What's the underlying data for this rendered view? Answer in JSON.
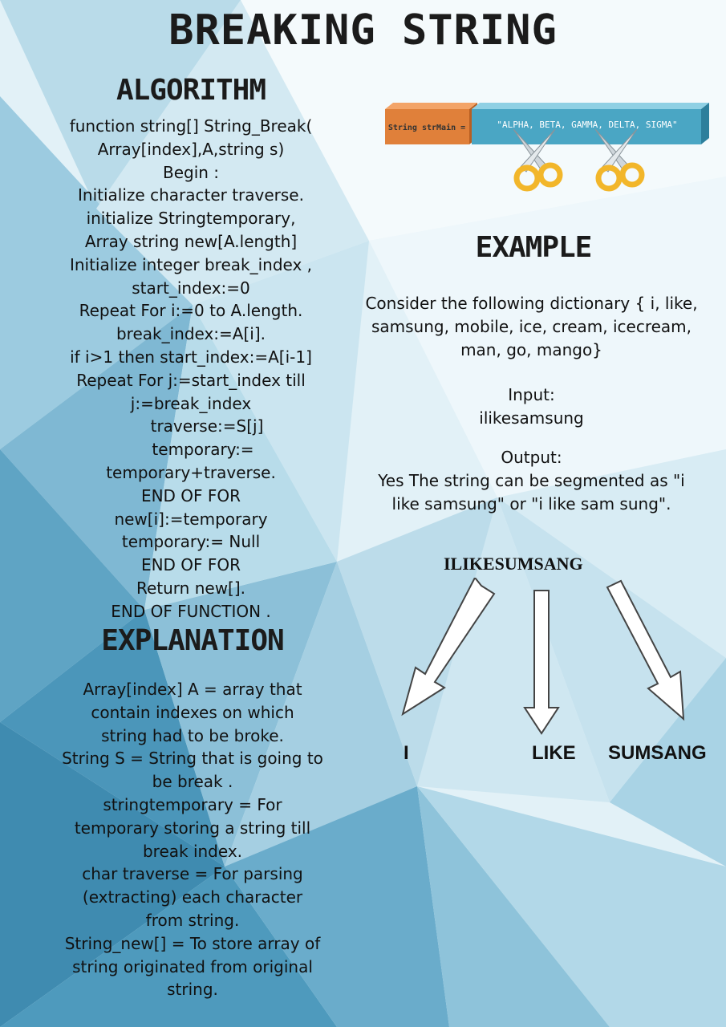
{
  "title": "BREAKING STRING",
  "headings": {
    "algorithm": "ALGORITHM",
    "example": "EXAMPLE",
    "explanation": "EXPLANATION"
  },
  "algorithm_lines": [
    "function string[] String_Break(",
    "Array[index],A,string s)",
    "Begin :",
    "Initialize character traverse.",
    "initialize Stringtemporary,",
    "Array string new[A.length]",
    "Initialize integer break_index ,",
    "start_index:=0",
    "Repeat For i:=0 to  A.length.",
    "break_index:=A[i].",
    "if i>1 then start_index:=A[i-1]",
    "Repeat For j:=start_index till",
    "j:=break_index",
    "traverse:=S[j]",
    "temporary:=",
    "temporary+traverse.",
    "END OF FOR",
    "new[i]:=temporary",
    "temporary:= Null",
    "END OF FOR",
    "Return new[].",
    "END OF FUNCTION ."
  ],
  "explanation_lines": [
    "Array[index] A = array that",
    "contain indexes on which",
    "string had to be broke.",
    "String S  = String that is going to",
    "be break .",
    "stringtemporary = For",
    "temporary storing a string till",
    "break index.",
    "char traverse = For parsing",
    "(extracting) each character",
    "from string.",
    "String_new[] = To store array of",
    "string originated from original",
    "string."
  ],
  "banner": {
    "label": "String strMain =",
    "value": "\"ALPHA, BETA, GAMMA, DELTA, SIGMA\""
  },
  "example": {
    "dictionary_lines": [
      "Consider the following dictionary { i, like,",
      "samsung, mobile, ice, cream, icecream,",
      "man, go, mango}"
    ],
    "input_label": "Input:",
    "input_value": "ilikesamsung",
    "output_label": "Output:",
    "output_lines": [
      "Yes The string can be segmented as \"i",
      "like samsung\" or \"i like sam sung\"."
    ]
  },
  "diagram": {
    "source": "ILIKESUMSANG",
    "parts": [
      "I",
      "LIKE",
      "SUMSANG"
    ]
  },
  "colors": {
    "banner_orange": "#e0803a",
    "banner_blue": "#4aa6c4",
    "scissor_handle": "#f2b62a"
  }
}
